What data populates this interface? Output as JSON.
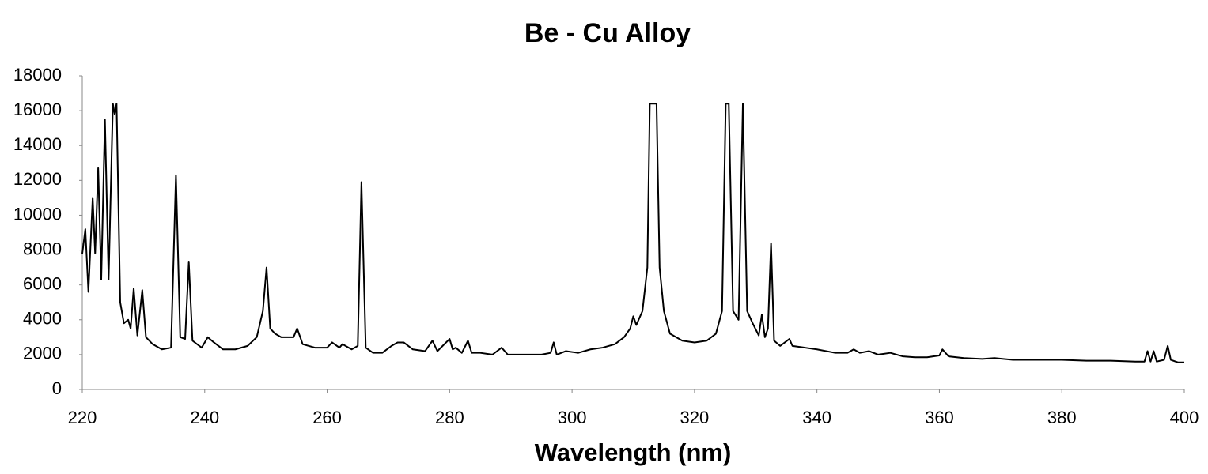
{
  "chart_data": {
    "type": "line",
    "title": "Be - Cu Alloy",
    "x_label": "Wavelength (nm)",
    "xlim": [
      220,
      400
    ],
    "xticks": [
      220,
      240,
      260,
      280,
      300,
      320,
      340,
      360,
      380,
      400
    ],
    "ylim": [
      0,
      18000
    ],
    "yticks": [
      0,
      2000,
      4000,
      6000,
      8000,
      10000,
      12000,
      14000,
      16000,
      18000
    ],
    "grid": false,
    "series": [
      {
        "color": "#000000",
        "x": [
          220,
          220.5,
          221,
          221.7,
          222.1,
          222.6,
          223.1,
          223.7,
          224.3,
          225,
          225.3,
          225.6,
          226.2,
          226.8,
          227.5,
          227.9,
          228.4,
          229,
          229.8,
          230.4,
          231.5,
          233,
          234.5,
          235.3,
          236,
          236.8,
          237.4,
          238,
          239.5,
          240.5,
          241.5,
          243,
          245,
          247,
          248.5,
          249.5,
          250.1,
          250.7,
          251.5,
          252.5,
          253.5,
          254.5,
          255.1,
          256,
          258,
          260,
          260.8,
          262,
          262.5,
          264,
          265,
          265.6,
          266.3,
          267.5,
          269,
          270.5,
          271.5,
          272.5,
          274,
          276,
          277.2,
          278,
          280,
          280.5,
          281,
          282,
          283,
          283.6,
          285,
          287,
          288.5,
          289.5,
          292,
          295,
          296.5,
          297,
          297.5,
          299,
          301,
          303,
          305,
          307,
          308.5,
          309.5,
          310,
          310.5,
          311.5,
          312.3,
          312.7,
          313.8,
          314.3,
          315,
          316,
          318,
          320,
          322,
          323.5,
          324.5,
          325.1,
          325.6,
          326.3,
          327.2,
          327.9,
          328.6,
          329.5,
          330.5,
          331,
          331.5,
          332,
          332.5,
          333,
          334,
          335.5,
          336,
          338,
          340,
          343,
          345,
          346,
          347,
          348.5,
          350,
          352,
          354,
          356,
          358,
          360,
          360.5,
          361.5,
          364,
          367,
          369,
          372,
          376,
          380,
          384,
          388,
          392,
          393.5,
          394,
          394.5,
          395,
          395.5,
          396.7,
          397.3,
          397.8,
          399,
          400
        ],
        "values": [
          7800,
          9200,
          5600,
          11000,
          7800,
          12700,
          6300,
          15500,
          6300,
          16400,
          15800,
          16400,
          5000,
          3800,
          4000,
          3500,
          5800,
          3100,
          5700,
          3000,
          2600,
          2300,
          2400,
          12300,
          3000,
          2900,
          7300,
          2800,
          2400,
          3000,
          2700,
          2300,
          2300,
          2500,
          3000,
          4500,
          7000,
          3500,
          3200,
          3000,
          3000,
          3000,
          3500,
          2600,
          2400,
          2400,
          2700,
          2400,
          2600,
          2300,
          2500,
          11900,
          2400,
          2100,
          2100,
          2500,
          2700,
          2700,
          2300,
          2200,
          2800,
          2200,
          2900,
          2300,
          2400,
          2100,
          2800,
          2100,
          2100,
          2000,
          2400,
          2000,
          2000,
          2000,
          2100,
          2700,
          2000,
          2200,
          2100,
          2300,
          2400,
          2600,
          3000,
          3500,
          4200,
          3700,
          4500,
          7000,
          16400,
          16400,
          7000,
          4500,
          3200,
          2800,
          2700,
          2800,
          3200,
          4500,
          16400,
          16400,
          4500,
          4000,
          16400,
          4500,
          3800,
          3100,
          4300,
          3000,
          3500,
          8400,
          2800,
          2500,
          2900,
          2500,
          2400,
          2300,
          2100,
          2100,
          2300,
          2100,
          2200,
          2000,
          2100,
          1900,
          1850,
          1850,
          1950,
          2300,
          1900,
          1800,
          1750,
          1800,
          1700,
          1700,
          1700,
          1650,
          1650,
          1600,
          1600,
          2200,
          1600,
          2200,
          1600,
          1700,
          2500,
          1700,
          1550,
          1550
        ]
      }
    ]
  }
}
